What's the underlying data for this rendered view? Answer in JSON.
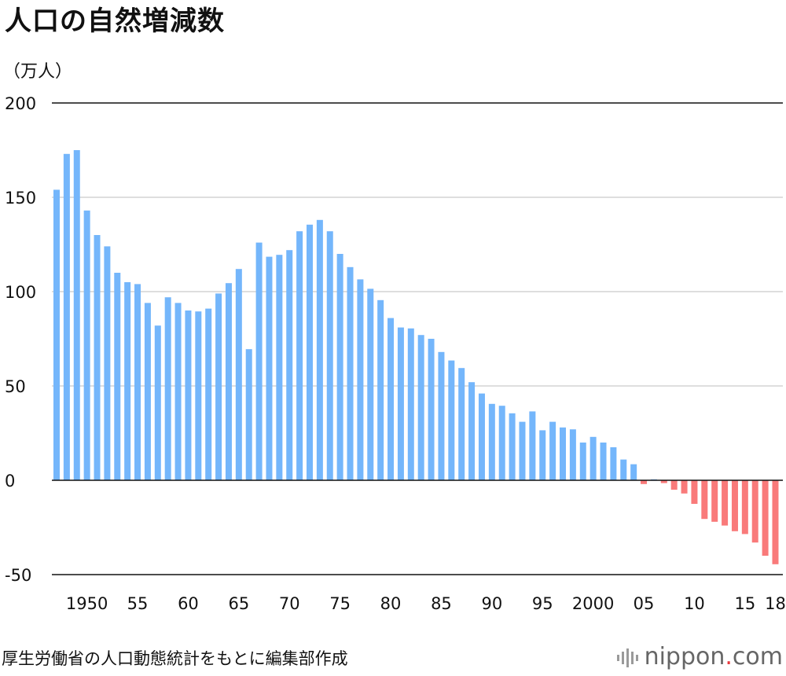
{
  "title": "人口の自然増減数",
  "unit": "（万人）",
  "source": "厚生労働省の人口動態統計をもとに編集部作成",
  "logo": {
    "name": "nippon",
    "dot": ".",
    "suffix": "com"
  },
  "colors": {
    "positive": "#74b6fb",
    "negative": "#f97a7a",
    "axis": "#111111",
    "grid": "#bdbdbd"
  },
  "chart_data": {
    "type": "bar",
    "title": "人口の自然増減数",
    "ylabel": "（万人）",
    "ylim": [
      -50,
      200
    ],
    "yticks": [
      200,
      150,
      100,
      50,
      0,
      -50
    ],
    "grid": true,
    "x_start_year": 1947,
    "x_end_year": 2018,
    "xtick_labels": [
      {
        "year": 1950,
        "label": "1950"
      },
      {
        "year": 1955,
        "label": "55"
      },
      {
        "year": 1960,
        "label": "60"
      },
      {
        "year": 1965,
        "label": "65"
      },
      {
        "year": 1970,
        "label": "70"
      },
      {
        "year": 1975,
        "label": "75"
      },
      {
        "year": 1980,
        "label": "80"
      },
      {
        "year": 1985,
        "label": "85"
      },
      {
        "year": 1990,
        "label": "90"
      },
      {
        "year": 1995,
        "label": "95"
      },
      {
        "year": 2000,
        "label": "2000"
      },
      {
        "year": 2005,
        "label": "05"
      },
      {
        "year": 2010,
        "label": "10"
      },
      {
        "year": 2015,
        "label": "15"
      },
      {
        "year": 2018,
        "label": "18"
      }
    ],
    "values": [
      154,
      173,
      175,
      143,
      130,
      124,
      110,
      105,
      104,
      94,
      82,
      97,
      94,
      90,
      89.5,
      91,
      99,
      104.5,
      112,
      69.5,
      126,
      118.5,
      119.5,
      122,
      132,
      135.5,
      138,
      132,
      120,
      113,
      106.5,
      101.5,
      95.5,
      86,
      81,
      80.5,
      77,
      75,
      68,
      63.5,
      59.5,
      52,
      46,
      40.5,
      39.5,
      35.5,
      31,
      36.5,
      26.5,
      31,
      28,
      27,
      20,
      23,
      20,
      17.5,
      11,
      8.5,
      -2,
      0.5,
      -1.5,
      -5,
      -7,
      -12.5,
      -20.5,
      -22,
      -24,
      -27,
      -28.5,
      -33,
      -40,
      -44.5
    ]
  }
}
